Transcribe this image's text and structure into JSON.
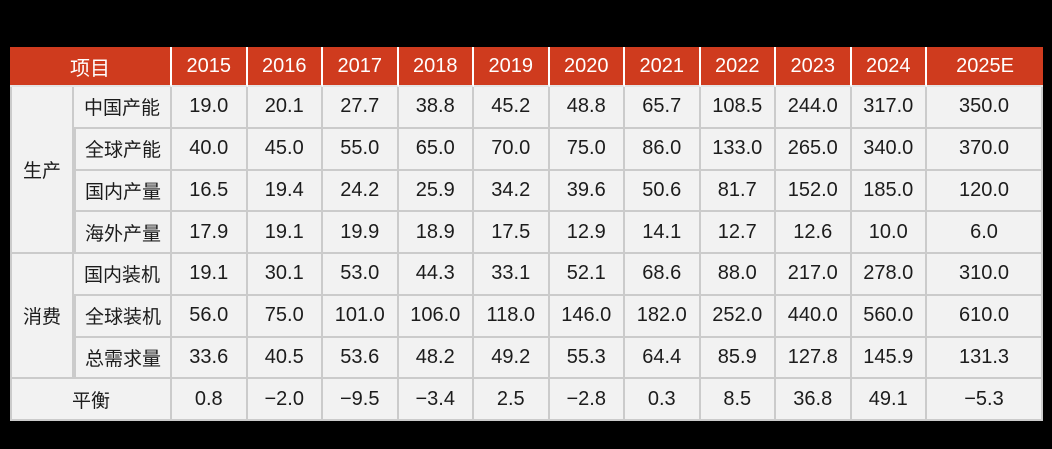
{
  "page": {
    "background": "#000000"
  },
  "colors": {
    "header_bg": "#cf3b1e",
    "header_text": "#ffffff",
    "cell_bg": "#f2f2f2",
    "grid_line": "#cbcbcb",
    "header_divider": "#ffffff",
    "body_text": "#1c1c1c"
  },
  "table": {
    "header": {
      "item_label": "项目",
      "years": [
        "2015",
        "2016",
        "2017",
        "2018",
        "2019",
        "2020",
        "2021",
        "2022",
        "2023",
        "2024",
        "2025E"
      ]
    },
    "groups": [
      {
        "name": "生产",
        "rows": [
          {
            "label": "中国产能",
            "values": [
              "19.0",
              "20.1",
              "27.7",
              "38.8",
              "45.2",
              "48.8",
              "65.7",
              "108.5",
              "244.0",
              "317.0",
              "350.0"
            ]
          },
          {
            "label": "全球产能",
            "values": [
              "40.0",
              "45.0",
              "55.0",
              "65.0",
              "70.0",
              "75.0",
              "86.0",
              "133.0",
              "265.0",
              "340.0",
              "370.0"
            ]
          },
          {
            "label": "国内产量",
            "values": [
              "16.5",
              "19.4",
              "24.2",
              "25.9",
              "34.2",
              "39.6",
              "50.6",
              "81.7",
              "152.0",
              "185.0",
              "120.0"
            ]
          },
          {
            "label": "海外产量",
            "values": [
              "17.9",
              "19.1",
              "19.9",
              "18.9",
              "17.5",
              "12.9",
              "14.1",
              "12.7",
              "12.6",
              "10.0",
              "6.0"
            ]
          }
        ]
      },
      {
        "name": "消费",
        "rows": [
          {
            "label": "国内装机",
            "values": [
              "19.1",
              "30.1",
              "53.0",
              "44.3",
              "33.1",
              "52.1",
              "68.6",
              "88.0",
              "217.0",
              "278.0",
              "310.0"
            ]
          },
          {
            "label": "全球装机",
            "values": [
              "56.0",
              "75.0",
              "101.0",
              "106.0",
              "118.0",
              "146.0",
              "182.0",
              "252.0",
              "440.0",
              "560.0",
              "610.0"
            ]
          },
          {
            "label": "总需求量",
            "values": [
              "33.6",
              "40.5",
              "53.6",
              "48.2",
              "49.2",
              "55.3",
              "64.4",
              "85.9",
              "127.8",
              "145.9",
              "131.3"
            ]
          }
        ]
      }
    ],
    "balance_row": {
      "label": "平衡",
      "values": [
        "0.8",
        "−2.0",
        "−9.5",
        "−3.4",
        "2.5",
        "−2.8",
        "0.3",
        "8.5",
        "36.8",
        "49.1",
        "−5.3"
      ]
    }
  },
  "chart_data": {
    "type": "table",
    "corner_label": "项目",
    "columns": [
      "2015",
      "2016",
      "2017",
      "2018",
      "2019",
      "2020",
      "2021",
      "2022",
      "2023",
      "2024",
      "2025E"
    ],
    "row_groups": [
      {
        "name": "生产",
        "rows": [
          {
            "label": "中国产能",
            "values": [
              19.0,
              20.1,
              27.7,
              38.8,
              45.2,
              48.8,
              65.7,
              108.5,
              244.0,
              317.0,
              350.0
            ]
          },
          {
            "label": "全球产能",
            "values": [
              40.0,
              45.0,
              55.0,
              65.0,
              70.0,
              75.0,
              86.0,
              133.0,
              265.0,
              340.0,
              370.0
            ]
          },
          {
            "label": "国内产量",
            "values": [
              16.5,
              19.4,
              24.2,
              25.9,
              34.2,
              39.6,
              50.6,
              81.7,
              152.0,
              185.0,
              120.0
            ]
          },
          {
            "label": "海外产量",
            "values": [
              17.9,
              19.1,
              19.9,
              18.9,
              17.5,
              12.9,
              14.1,
              12.7,
              12.6,
              10.0,
              6.0
            ]
          }
        ]
      },
      {
        "name": "消费",
        "rows": [
          {
            "label": "国内装机",
            "values": [
              19.1,
              30.1,
              53.0,
              44.3,
              33.1,
              52.1,
              68.6,
              88.0,
              217.0,
              278.0,
              310.0
            ]
          },
          {
            "label": "全球装机",
            "values": [
              56.0,
              75.0,
              101.0,
              106.0,
              118.0,
              146.0,
              182.0,
              252.0,
              440.0,
              560.0,
              610.0
            ]
          },
          {
            "label": "总需求量",
            "values": [
              33.6,
              40.5,
              53.6,
              48.2,
              49.2,
              55.3,
              64.4,
              85.9,
              127.8,
              145.9,
              131.3
            ]
          }
        ]
      }
    ],
    "balance_row": {
      "label": "平衡",
      "values": [
        0.8,
        -2.0,
        -9.5,
        -3.4,
        2.5,
        -2.8,
        0.3,
        8.5,
        36.8,
        49.1,
        -5.3
      ]
    }
  }
}
